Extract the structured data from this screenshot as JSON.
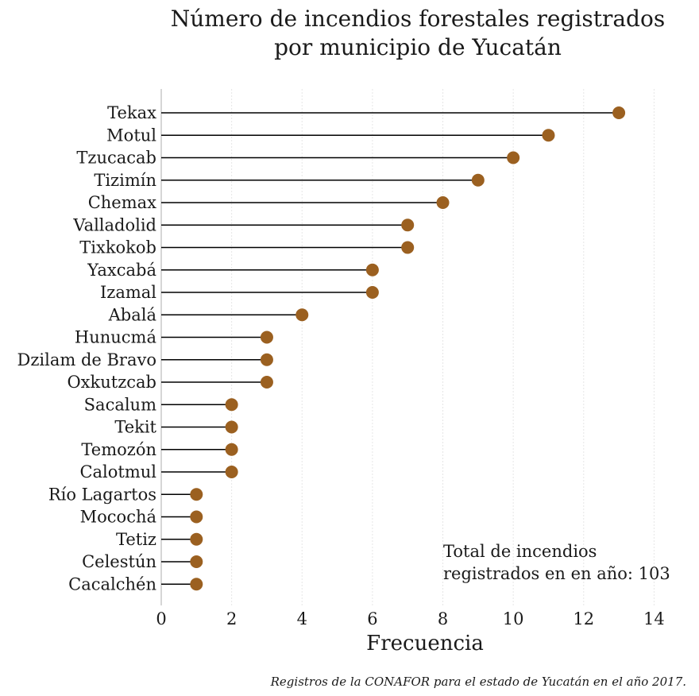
{
  "chart_data": {
    "type": "lollipop",
    "title_lines": [
      "Número de incendios forestales registrados",
      "por municipio de Yucatán"
    ],
    "xlabel": "Frecuencia",
    "ylabel": "",
    "xlim": [
      0,
      14.6
    ],
    "xticks": [
      0,
      2,
      4,
      6,
      8,
      10,
      12,
      14
    ],
    "grid": "vertical",
    "categories": [
      "Tekax",
      "Motul",
      "Tzucacab",
      "Tizimín",
      "Chemax",
      "Valladolid",
      "Tixkokob",
      "Yaxcabá",
      "Izamal",
      "Abalá",
      "Hunucmá",
      "Dzilam de Bravo",
      "Oxkutzcab",
      "Sacalum",
      "Tekit",
      "Temozón",
      "Calotmul",
      "Río Lagartos",
      "Mocochá",
      "Tetiz",
      "Celestún",
      "Cacalchén"
    ],
    "values": [
      13,
      11,
      10,
      9,
      8,
      7,
      7,
      6,
      6,
      4,
      3,
      3,
      3,
      2,
      2,
      2,
      2,
      1,
      1,
      1,
      1,
      1
    ],
    "annotation_lines": [
      "Total de incendios",
      "registrados en en año: 103"
    ],
    "caption": "Registros de la CONAFOR para el estado de Yucatán en el año 2017.",
    "colors": {
      "marker": "#9b6020",
      "stem": "#000000",
      "grid": "#e6e6e6",
      "axis": "#c8c8c8"
    }
  }
}
